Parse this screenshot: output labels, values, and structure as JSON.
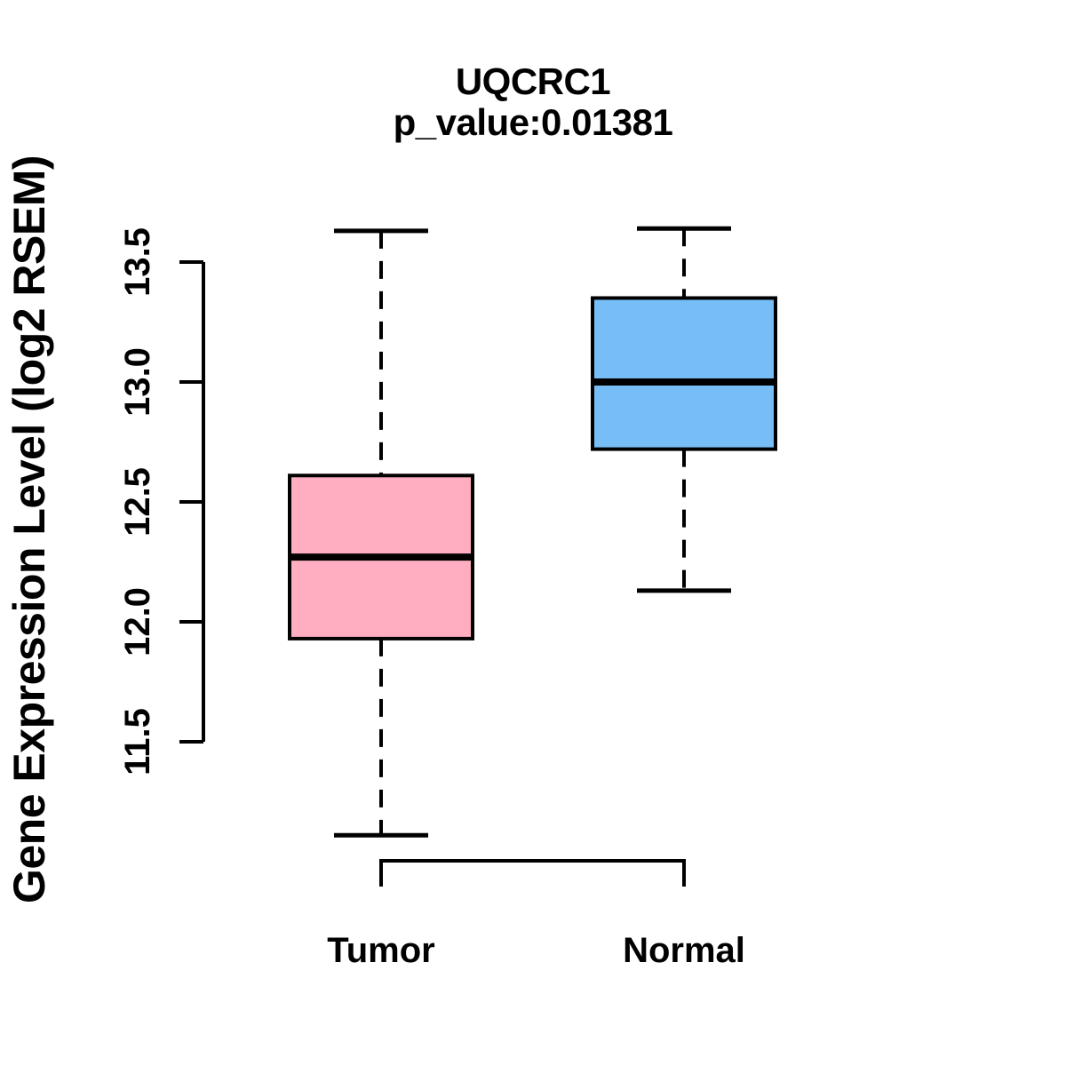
{
  "figure": {
    "background": "#FFFFFF",
    "foreground": "#000000"
  },
  "chart_data": {
    "type": "boxplot",
    "title": "UQCRC1",
    "subtitle": "p_value:0.01381",
    "ylabel": "Gene Expression Level (log2 RSEM)",
    "xlabel": "",
    "categories": [
      "Tumor",
      "Normal"
    ],
    "series": [
      {
        "name": "Tumor",
        "box_color": "#FFAEC1",
        "whisker_low": 11.11,
        "q1": 11.93,
        "median": 12.27,
        "q3": 12.61,
        "whisker_high": 13.63
      },
      {
        "name": "Normal",
        "box_color": "#76BEF5",
        "whisker_low": 12.13,
        "q1": 12.72,
        "median": 13.0,
        "q3": 13.35,
        "whisker_high": 13.64
      }
    ],
    "yticks": [
      13.5,
      13.0,
      12.5,
      12.0,
      11.5
    ],
    "ylim": [
      11.0,
      13.75
    ],
    "grid": false,
    "legend": "none",
    "stroke_color": "#000000",
    "whisker_style": "dashed"
  }
}
